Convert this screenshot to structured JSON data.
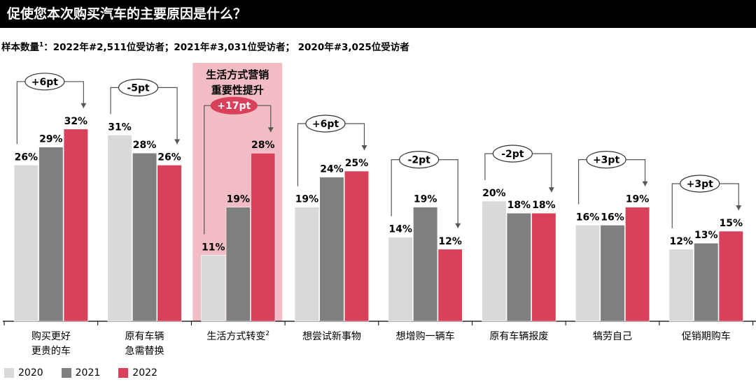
{
  "title": "促使您本次购买汽车的主要原因是什么？",
  "sample_note": {
    "prefix": "样本数量",
    "footnote_mark": "1",
    "text": "：2022年#2,511位受访者；2021年#3,031位受访者； 2020年#3,025位受访者"
  },
  "colors": {
    "2020": "#d9d9d9",
    "2021": "#7f7f7f",
    "2022": "#d9405a",
    "highlight_bg": "#f2bcc5"
  },
  "chart_data": {
    "type": "bar",
    "categories": [
      [
        "购买更好",
        "更贵的车"
      ],
      [
        "原有车辆",
        "急需替换"
      ],
      [
        "生活方式转变"
      ],
      [
        "想尝试新事物"
      ],
      [
        "想增购一辆车"
      ],
      [
        "原有车辆报废"
      ],
      [
        "犒劳自己"
      ],
      [
        "促销期购车"
      ]
    ],
    "category_footnotes": [
      "",
      "",
      "2",
      "",
      "",
      "",
      "",
      ""
    ],
    "series": [
      {
        "name": "2020",
        "values": [
          26,
          31,
          11,
          19,
          14,
          20,
          16,
          12
        ]
      },
      {
        "name": "2021",
        "values": [
          29,
          28,
          19,
          24,
          19,
          18,
          16,
          13
        ]
      },
      {
        "name": "2022",
        "values": [
          32,
          26,
          28,
          25,
          12,
          18,
          19,
          15
        ]
      }
    ],
    "value_suffix": "%",
    "changes": [
      "+6pt",
      "-5pt",
      "+17pt",
      "+6pt",
      "-2pt",
      "-2pt",
      "+3pt",
      "+3pt"
    ],
    "highlight": {
      "category_index": 2,
      "label_lines": [
        "生活方式营销",
        "重要性提升"
      ]
    },
    "ylim": [
      0,
      36
    ],
    "legend_placement": "bottom-left"
  }
}
